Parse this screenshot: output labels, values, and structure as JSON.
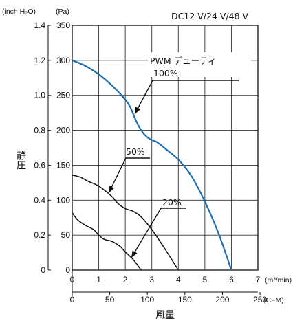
{
  "chart_data": {
    "type": "line",
    "title": "DC12 V/24 V/48 V",
    "xlabel": "風量",
    "ylabel": "静圧",
    "x_units": {
      "primary": "(m³/min)",
      "secondary": "(CFM)"
    },
    "y_units": {
      "left_outer": "(inch H₂O)",
      "left_inner": "(Pa)"
    },
    "xlim": [
      0,
      7
    ],
    "ylim": [
      0,
      350
    ],
    "x_ticks_m3min": [
      "0",
      "1",
      "2",
      "3",
      "4",
      "5",
      "6",
      "7"
    ],
    "x_ticks_cfm": [
      "0",
      "50",
      "100",
      "150",
      "200",
      "250"
    ],
    "x_ticks_cfm_values": [
      0,
      50,
      100,
      150,
      200,
      250
    ],
    "y_ticks_pa": [
      "0",
      "50",
      "100",
      "150",
      "200",
      "250",
      "300",
      "350"
    ],
    "y_ticks_inh2o": [
      "0",
      "0.2",
      "0.4",
      "0.6",
      "0.8",
      "1.0",
      "1.2",
      "1.4"
    ],
    "legend_header": "PWM デューティ",
    "grid": true,
    "series": [
      {
        "name": "100%",
        "color": "#1a6eb5",
        "x": [
          0,
          0.5,
          1.0,
          1.5,
          2.0,
          2.2,
          2.4,
          2.6,
          2.8,
          3.0,
          3.2,
          3.5,
          4.0,
          4.5,
          5.0,
          5.5,
          6.0
        ],
        "y": [
          300,
          292,
          280,
          264,
          244,
          232,
          214,
          200,
          191,
          186,
          183,
          174,
          158,
          134,
          98,
          54,
          0
        ]
      },
      {
        "name": "50%",
        "color": "#111111",
        "x": [
          0,
          0.3,
          0.6,
          1.0,
          1.5,
          1.7,
          2.0,
          2.3,
          2.6,
          3.0,
          3.5,
          4.0
        ],
        "y": [
          136,
          133,
          127,
          120,
          105,
          96,
          88,
          84,
          76,
          58,
          30,
          0
        ]
      },
      {
        "name": "20%",
        "color": "#111111",
        "x": [
          0,
          0.2,
          0.5,
          0.8,
          1.0,
          1.2,
          1.5,
          1.8,
          2.0,
          2.3,
          2.6
        ],
        "y": [
          82,
          72,
          64,
          58,
          50,
          44,
          41,
          34,
          26,
          15,
          0
        ]
      }
    ],
    "annotations": [
      {
        "text": "100%",
        "series": "100%"
      },
      {
        "text": "50%",
        "series": "50%"
      },
      {
        "text": "20%",
        "series": "20%"
      }
    ]
  }
}
